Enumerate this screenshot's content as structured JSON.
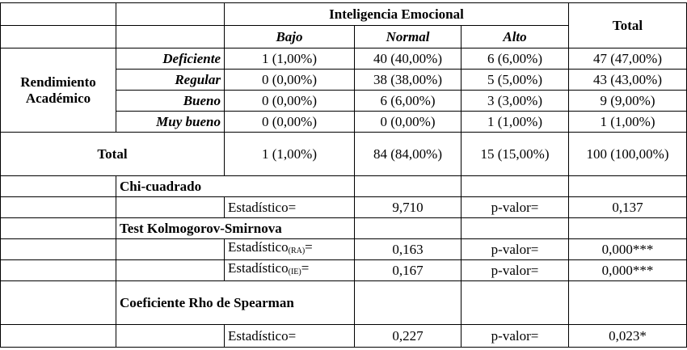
{
  "header": {
    "group": "Inteligencia Emocional",
    "total": "Total",
    "columns": [
      "Bajo",
      "Normal",
      "Alto"
    ]
  },
  "crosstab": {
    "row_group": "Rendimiento Académico",
    "rows": [
      {
        "label": "Deficiente",
        "cells": [
          "1 (1,00%)",
          "40 (40,00%)",
          "6 (6,00%)",
          "47 (47,00%)"
        ]
      },
      {
        "label": "Regular",
        "cells": [
          "0 (0,00%)",
          "38 (38,00%)",
          "5 (5,00%)",
          "43 (43,00%)"
        ]
      },
      {
        "label": "Bueno",
        "cells": [
          "0 (0,00%)",
          "6 (6,00%)",
          "3 (3,00%)",
          "9 (9,00%)"
        ]
      },
      {
        "label": "Muy bueno",
        "cells": [
          "0 (0,00%)",
          "0 (0,00%)",
          "1 (1,00%)",
          "1 (1,00%)"
        ]
      }
    ],
    "total_row": {
      "label": "Total",
      "cells": [
        "1 (1,00%)",
        "84 (84,00%)",
        "15 (15,00%)",
        "100 (100,00%)"
      ]
    }
  },
  "tests": [
    {
      "title": "Chi-cuadrado",
      "rows": [
        {
          "stat_label": {
            "text": "Estadístico="
          },
          "stat": "9,710",
          "p_label": "p-valor=",
          "p": "0,137"
        }
      ]
    },
    {
      "title": "Test Kolmogorov-Smirnova",
      "rows": [
        {
          "stat_label": {
            "text": "Estadístico",
            "sub": "(RA)",
            "suffix": "="
          },
          "stat": "0,163",
          "p_label": "p-valor=",
          "p": "0,000***"
        },
        {
          "stat_label": {
            "text": "Estadístico",
            "sub": "(IE)",
            "suffix": "="
          },
          "stat": "0,167",
          "p_label": "p-valor=",
          "p": "0,000***"
        }
      ]
    },
    {
      "title": "Coeficiente Rho de Spearman",
      "rows": [
        {
          "stat_label": {
            "text": "Estadístico="
          },
          "stat": "0,227",
          "p_label": "p-valor=",
          "p": "0,023*"
        }
      ]
    }
  ]
}
